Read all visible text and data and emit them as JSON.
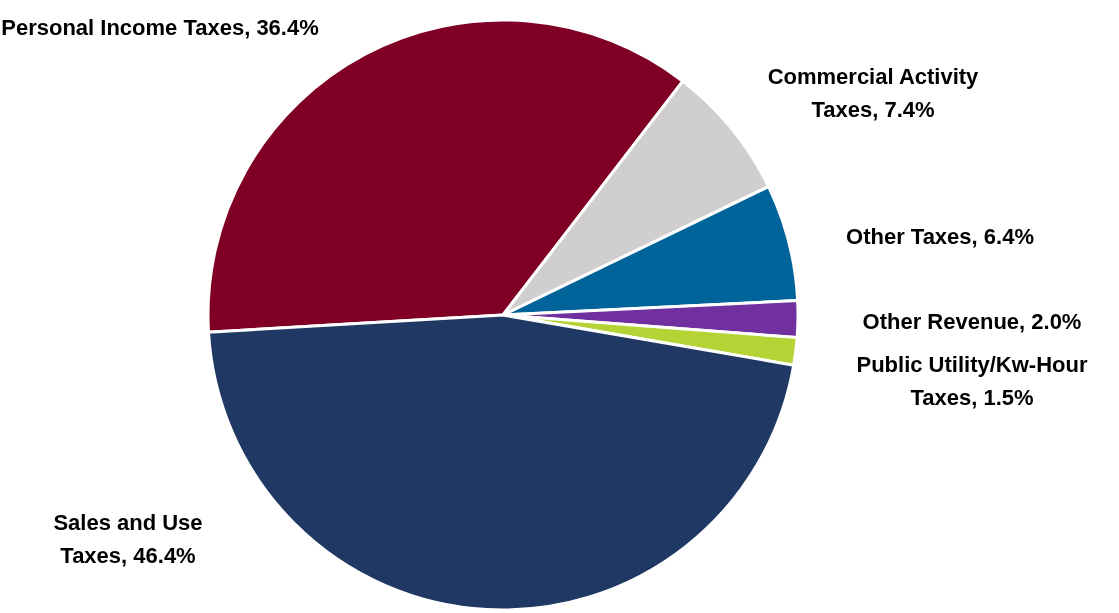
{
  "chart_data": {
    "type": "pie",
    "categories": [
      "Personal Income Taxes",
      "Commercial Activity Taxes",
      "Other Taxes",
      "Other Revenue",
      "Public Utility/Kw-Hour Taxes",
      "Sales and Use Taxes"
    ],
    "values": [
      36.4,
      7.4,
      6.4,
      2.0,
      1.5,
      46.4
    ],
    "value_labels": [
      "36.4%",
      "7.4%",
      "6.4%",
      "2.0%",
      "1.5%",
      "46.4%"
    ],
    "colors": [
      "#800025",
      "#d0cece",
      "#00649a",
      "#7030a0",
      "#b5d334",
      "#203864"
    ]
  }
}
